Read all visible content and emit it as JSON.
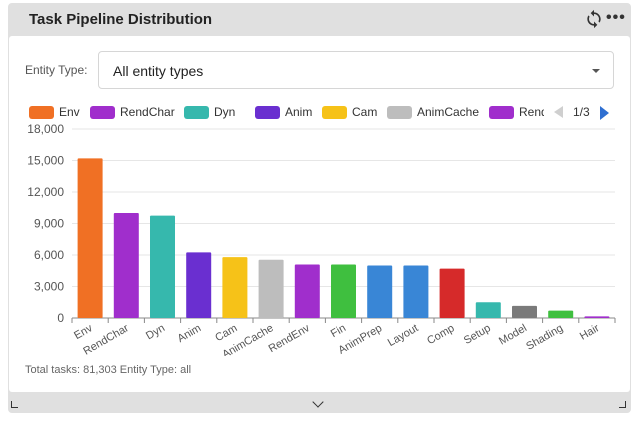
{
  "header": {
    "title": "Task Pipeline Distribution",
    "refresh_icon": "refresh-icon",
    "more_icon": "more-horizontal-icon",
    "more_glyph": "•••"
  },
  "filter": {
    "label": "Entity Type:",
    "value": "All entity types",
    "caret_icon": "caret-down-icon"
  },
  "legend": {
    "page": "1/3",
    "prev_icon": "arrow-left-icon",
    "next_icon": "arrow-right-icon"
  },
  "chart_data": {
    "type": "bar",
    "categories": [
      "Env",
      "RendChar",
      "Dyn",
      "Anim",
      "Cam",
      "AnimCache",
      "RendEnv",
      "Fin",
      "AnimPrep",
      "Layout",
      "Comp",
      "Setup",
      "Model",
      "Shading",
      "Hair"
    ],
    "values": [
      15200,
      10000,
      9750,
      6250,
      5800,
      5550,
      5100,
      5100,
      5000,
      5000,
      4700,
      1500,
      1150,
      700,
      150
    ],
    "colors": [
      "#f07024",
      "#a02ecc",
      "#36b8ad",
      "#6a2fd0",
      "#f6c218",
      "#bdbdbd",
      "#a02ecc",
      "#3fbf3f",
      "#3986d6",
      "#3986d6",
      "#d62a2a",
      "#36b8ad",
      "#7a7a7a",
      "#3fbf3f",
      "#a02ecc"
    ],
    "legend_entries": [
      {
        "name": "Env",
        "color": "#f07024"
      },
      {
        "name": "RendChar",
        "color": "#a02ecc"
      },
      {
        "name": "Dyn",
        "color": "#36b8ad"
      },
      {
        "name": "Anim",
        "color": "#6a2fd0"
      },
      {
        "name": "Cam",
        "color": "#f6c218"
      },
      {
        "name": "AnimCache",
        "color": "#bdbdbd"
      },
      {
        "name": "RendE",
        "color": "#a02ecc"
      }
    ],
    "title": "",
    "xlabel": "",
    "ylabel": "",
    "ylim": [
      0,
      18000
    ],
    "yticks": [
      0,
      3000,
      6000,
      9000,
      12000,
      15000,
      18000
    ],
    "ytick_labels": [
      "0",
      "3,000",
      "6,000",
      "9,000",
      "12,000",
      "15,000",
      "18,000"
    ],
    "grid": true,
    "legend_position": "top"
  },
  "summary": "Total tasks: 81,303 Entity Type: all",
  "footer": {
    "expand_icon": "chevron-down-icon",
    "resize_left_icon": "resize-corner-left-icon",
    "resize_right_icon": "resize-corner-right-icon"
  }
}
